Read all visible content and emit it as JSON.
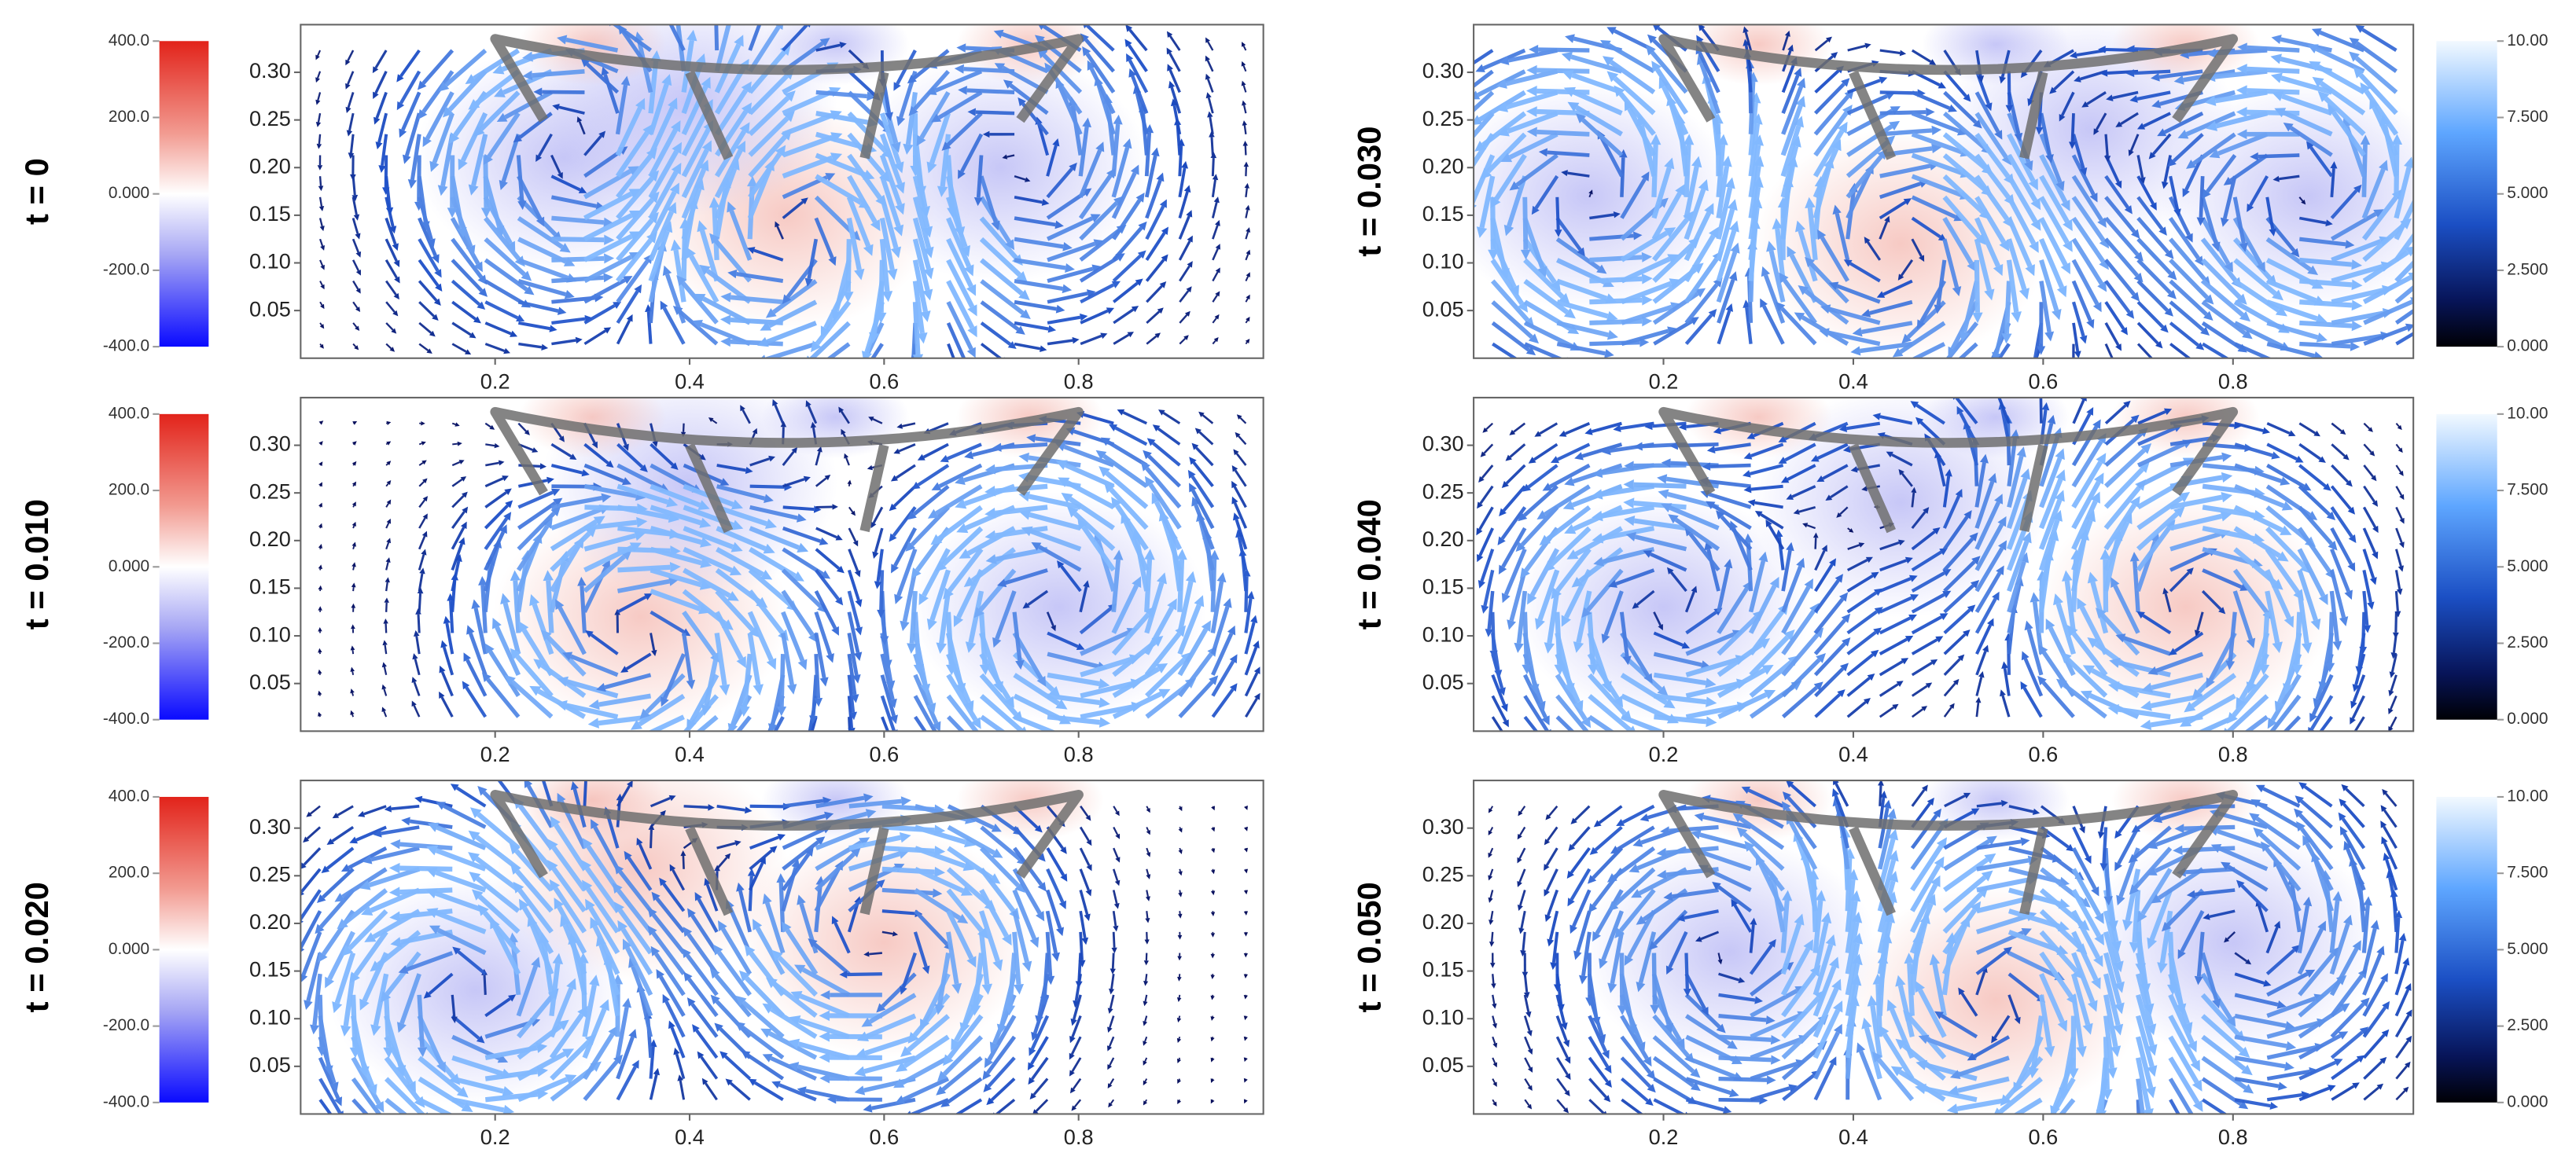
{
  "chart_data": [
    {
      "type": "quiver",
      "label": "t = 0",
      "xlim": [
        0,
        0.99
      ],
      "ylim": [
        0,
        0.35
      ],
      "xticks": [
        0.2,
        0.4,
        0.6,
        0.8
      ],
      "yticks": [
        0.05,
        {
          "value": 0.1,
          "label": "0.10"
        },
        0.15,
        {
          "value": 0.2,
          "label": "0.20"
        },
        0.25,
        {
          "value": 0.3,
          "label": "0.30"
        }
      ],
      "colorbar_side": "left",
      "colorbar_lim": [
        -400,
        400
      ],
      "colorbar_ticks": [
        {
          "value": 400,
          "label": "400.0"
        },
        {
          "value": 200,
          "label": "200.0"
        },
        {
          "value": 0,
          "label": "0.000"
        },
        {
          "value": -200,
          "label": "-200.0"
        },
        {
          "value": -400,
          "label": "-400.0"
        }
      ]
    },
    {
      "type": "quiver",
      "label": "t = 0.010",
      "xlim": [
        0,
        0.99
      ],
      "ylim": [
        0,
        0.35
      ],
      "xticks": [
        0.2,
        0.4,
        0.6,
        0.8
      ],
      "yticks": [
        0.05,
        {
          "value": 0.1,
          "label": "0.10"
        },
        0.15,
        {
          "value": 0.2,
          "label": "0.20"
        },
        0.25,
        {
          "value": 0.3,
          "label": "0.30"
        }
      ],
      "colorbar_side": "left",
      "colorbar_lim": [
        -400,
        400
      ],
      "colorbar_ticks": [
        {
          "value": 400,
          "label": "400.0"
        },
        {
          "value": 200,
          "label": "200.0"
        },
        {
          "value": 0,
          "label": "0.000"
        },
        {
          "value": -200,
          "label": "-200.0"
        },
        {
          "value": -400,
          "label": "-400.0"
        }
      ]
    },
    {
      "type": "quiver",
      "label": "t = 0.020",
      "xlim": [
        0,
        0.99
      ],
      "ylim": [
        0,
        0.35
      ],
      "xticks": [
        0.2,
        0.4,
        0.6,
        0.8
      ],
      "yticks": [
        0.05,
        {
          "value": 0.1,
          "label": "0.10"
        },
        0.15,
        {
          "value": 0.2,
          "label": "0.20"
        },
        0.25,
        {
          "value": 0.3,
          "label": "0.30"
        }
      ],
      "colorbar_side": "left",
      "colorbar_lim": [
        -400,
        400
      ],
      "colorbar_ticks": [
        {
          "value": 400,
          "label": "400.0"
        },
        {
          "value": 200,
          "label": "200.0"
        },
        {
          "value": 0,
          "label": "0.000"
        },
        {
          "value": -200,
          "label": "-200.0"
        },
        {
          "value": -400,
          "label": "-400.0"
        }
      ]
    },
    {
      "type": "quiver",
      "label": "t = 0.030",
      "xlim": [
        0,
        0.99
      ],
      "ylim": [
        0,
        0.35
      ],
      "xticks": [
        0.2,
        0.4,
        0.6,
        0.8
      ],
      "yticks": [
        0.05,
        {
          "value": 0.1,
          "label": "0.10"
        },
        0.15,
        {
          "value": 0.2,
          "label": "0.20"
        },
        0.25,
        {
          "value": 0.3,
          "label": "0.30"
        }
      ],
      "colorbar_side": "right",
      "colorbar_lim": [
        0,
        10
      ],
      "colorbar_ticks": [
        {
          "value": 10,
          "label": "10.00"
        },
        {
          "value": 7.5,
          "label": "7.500"
        },
        {
          "value": 5,
          "label": "5.000"
        },
        {
          "value": 2.5,
          "label": "2.500"
        },
        {
          "value": 0,
          "label": "0.000"
        }
      ]
    },
    {
      "type": "quiver",
      "label": "t = 0.040",
      "xlim": [
        0,
        0.99
      ],
      "ylim": [
        0,
        0.35
      ],
      "xticks": [
        0.2,
        0.4,
        0.6,
        0.8
      ],
      "yticks": [
        0.05,
        {
          "value": 0.1,
          "label": "0.10"
        },
        0.15,
        {
          "value": 0.2,
          "label": "0.20"
        },
        0.25,
        {
          "value": 0.3,
          "label": "0.30"
        }
      ],
      "colorbar_side": "right",
      "colorbar_lim": [
        0,
        10
      ],
      "colorbar_ticks": [
        {
          "value": 10,
          "label": "10.00"
        },
        {
          "value": 7.5,
          "label": "7.500"
        },
        {
          "value": 5,
          "label": "5.000"
        },
        {
          "value": 2.5,
          "label": "2.500"
        },
        {
          "value": 0,
          "label": "0.000"
        }
      ]
    },
    {
      "type": "quiver",
      "label": "t = 0.050",
      "xlim": [
        0,
        0.99
      ],
      "ylim": [
        0,
        0.35
      ],
      "xticks": [
        0.2,
        0.4,
        0.6,
        0.8
      ],
      "yticks": [
        0.05,
        {
          "value": 0.1,
          "label": "0.10"
        },
        0.15,
        {
          "value": 0.2,
          "label": "0.20"
        },
        0.25,
        {
          "value": 0.3,
          "label": "0.30"
        }
      ],
      "colorbar_side": "right",
      "colorbar_lim": [
        0,
        10
      ],
      "colorbar_ticks": [
        {
          "value": 10,
          "label": "10.00"
        },
        {
          "value": 7.5,
          "label": "7.500"
        },
        {
          "value": 5,
          "label": "5.000"
        },
        {
          "value": 2.5,
          "label": "2.500"
        },
        {
          "value": 0,
          "label": "0.000"
        }
      ]
    }
  ]
}
